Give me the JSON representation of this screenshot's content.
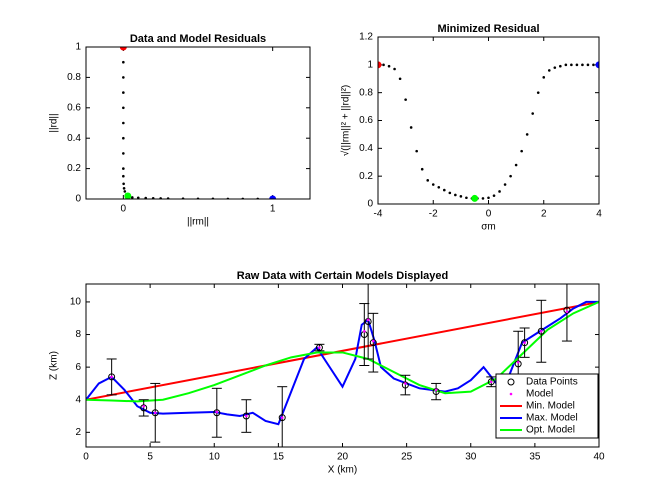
{
  "chart_data": [
    {
      "type": "scatter",
      "title": "Data and Model Residuals",
      "x_label": "||rm||",
      "y_label": "||rd||",
      "xlim": [
        -0.25,
        1.25
      ],
      "ylim": [
        0,
        1
      ],
      "xticks": [
        0,
        1
      ],
      "yticks": [
        0,
        0.2,
        0.4,
        0.6,
        0.8,
        1
      ],
      "series": [
        {
          "color": "#000000",
          "style": "dot",
          "x": [
            0,
            0,
            0,
            0,
            0,
            0,
            0,
            0,
            0,
            0,
            0.002,
            0.005,
            0.01,
            0.02,
            0.03,
            0.06,
            0.1,
            0.15,
            0.2,
            0.25,
            0.3,
            0.4,
            0.5,
            0.6,
            0.7,
            0.8,
            0.9,
            1
          ],
          "values": [
            1,
            0.9,
            0.8,
            0.7,
            0.6,
            0.5,
            0.4,
            0.3,
            0.2,
            0.15,
            0.1,
            0.07,
            0.05,
            0.03,
            0.02,
            0.01,
            0.008,
            0.006,
            0.005,
            0.004,
            0.003,
            0.002,
            0.0015,
            0.001,
            0.0008,
            0.0005,
            0.0002,
            0
          ]
        },
        {
          "color": "#ff0000",
          "style": "filled",
          "x": [
            0
          ],
          "values": [
            1
          ]
        },
        {
          "color": "#00ff00",
          "style": "filled",
          "x": [
            0.03
          ],
          "values": [
            0.02
          ]
        },
        {
          "color": "#0000ff",
          "style": "filled",
          "x": [
            1
          ],
          "values": [
            0
          ]
        }
      ]
    },
    {
      "type": "scatter",
      "title": "Minimized Residual",
      "x_label": "σm",
      "y_label": "√(||rm||² + ||rd||²)",
      "xlim": [
        -4,
        4
      ],
      "ylim": [
        0,
        1.2
      ],
      "xticks": [
        -4,
        -2,
        0,
        2,
        4
      ],
      "yticks": [
        0,
        0.2,
        0.4,
        0.6,
        0.8,
        1,
        1.2
      ],
      "series": [
        {
          "color": "#000000",
          "style": "dot",
          "x": [
            -4,
            -3.8,
            -3.6,
            -3.4,
            -3.2,
            -3,
            -2.8,
            -2.6,
            -2.4,
            -2.2,
            -2,
            -1.8,
            -1.6,
            -1.4,
            -1.2,
            -1,
            -0.8,
            -0.6,
            -0.4,
            -0.2,
            0,
            0.2,
            0.4,
            0.6,
            0.8,
            1,
            1.2,
            1.4,
            1.6,
            1.8,
            2,
            2.2,
            2.4,
            2.6,
            2.8,
            3,
            3.2,
            3.4,
            3.6,
            3.8,
            4
          ],
          "values": [
            1,
            1,
            0.99,
            0.97,
            0.9,
            0.75,
            0.55,
            0.38,
            0.25,
            0.17,
            0.14,
            0.12,
            0.1,
            0.08,
            0.065,
            0.055,
            0.045,
            0.04,
            0.04,
            0.04,
            0.045,
            0.06,
            0.09,
            0.14,
            0.2,
            0.28,
            0.38,
            0.5,
            0.65,
            0.8,
            0.91,
            0.96,
            0.98,
            0.99,
            1,
            1,
            1,
            1,
            1,
            1,
            1
          ]
        },
        {
          "color": "#ff0000",
          "style": "filled",
          "x": [
            -4
          ],
          "values": [
            1
          ]
        },
        {
          "color": "#00ff00",
          "style": "filled",
          "x": [
            -0.5
          ],
          "values": [
            0.04
          ]
        },
        {
          "color": "#0000ff",
          "style": "filled",
          "x": [
            4
          ],
          "values": [
            1
          ]
        }
      ]
    },
    {
      "type": "line",
      "title": "Raw Data with Certain Models Displayed",
      "x_label": "X (km)",
      "y_label": "Z (km)",
      "xlim": [
        0,
        40
      ],
      "ylim": [
        1.1,
        11.1
      ],
      "xticks": [
        0,
        5,
        10,
        15,
        20,
        25,
        30,
        35,
        40
      ],
      "yticks": [
        2,
        4,
        6,
        8,
        10
      ],
      "legend": "lower right",
      "series": [
        {
          "name": "Data Points",
          "color": "#000000",
          "style": "circle",
          "x": [
            2,
            4.5,
            5.4,
            10.2,
            12.5,
            15.3,
            18.2,
            21.7,
            22,
            22.4,
            24.9,
            27.3,
            31.6,
            33.7,
            34.2,
            35.5,
            37.5
          ],
          "values": [
            5.4,
            3.5,
            3.2,
            3.2,
            3.0,
            2.9,
            7.2,
            8.0,
            8.8,
            7.5,
            4.9,
            4.5,
            5.1,
            6.2,
            7.5,
            8.2,
            9.5
          ],
          "errors": [
            1.1,
            0.5,
            1.8,
            1.5,
            1.0,
            1.9,
            0.2,
            1.9,
            2.3,
            1.8,
            0.6,
            0.5,
            0.3,
            2.0,
            0.9,
            1.9,
            1.9
          ]
        },
        {
          "name": "Model",
          "color": "#ff00ff",
          "style": "dot",
          "x": [
            2,
            4.5,
            5.4,
            10.2,
            12.5,
            15.3,
            18.2,
            21.7,
            22,
            22.4,
            24.9,
            27.3,
            31.6,
            33.7,
            34.2,
            35.5,
            37.5
          ],
          "values": [
            5.4,
            3.6,
            3.2,
            3.25,
            3.0,
            2.9,
            7.2,
            8.2,
            8.9,
            7.6,
            5.0,
            4.6,
            5.1,
            6.3,
            7.5,
            8.2,
            9.4
          ]
        },
        {
          "name": "Min. Model",
          "color": "#ff0000",
          "style": "line",
          "x": [
            0,
            40
          ],
          "values": [
            4,
            10
          ]
        },
        {
          "name": "Max. Model",
          "color": "#0000ff",
          "style": "line",
          "x": [
            0,
            1,
            2,
            3,
            4,
            5,
            6,
            8,
            10,
            11,
            12,
            13,
            14,
            15,
            16,
            17,
            18,
            19,
            20,
            21,
            21.5,
            22,
            22.5,
            23,
            24,
            25,
            26,
            27,
            28,
            29,
            30,
            31,
            32,
            33,
            34,
            35,
            36,
            37,
            38,
            39,
            40
          ],
          "values": [
            4.0,
            5.0,
            5.4,
            4.6,
            3.6,
            3.2,
            3.15,
            3.2,
            3.25,
            3.1,
            3.0,
            3.2,
            2.7,
            2.5,
            4.5,
            6.5,
            7.2,
            6.0,
            4.8,
            6.5,
            8.6,
            8.9,
            7.6,
            6.0,
            5.3,
            5.0,
            4.7,
            4.6,
            4.5,
            4.7,
            5.2,
            6.0,
            5.0,
            5.5,
            7.5,
            8.0,
            8.5,
            9.0,
            9.6,
            10.0,
            10.0
          ]
        },
        {
          "name": "Opt. Model",
          "color": "#00ff00",
          "style": "line",
          "x": [
            0,
            2,
            4,
            6,
            8,
            10,
            12,
            14,
            16,
            18,
            20,
            22,
            24,
            26,
            28,
            30,
            32,
            34,
            36,
            38,
            40
          ],
          "values": [
            4.0,
            3.95,
            3.9,
            4.0,
            4.4,
            4.9,
            5.5,
            6.1,
            6.6,
            6.9,
            6.9,
            6.5,
            5.7,
            4.9,
            4.4,
            4.5,
            5.3,
            6.8,
            8.3,
            9.3,
            10.0
          ]
        }
      ]
    }
  ]
}
